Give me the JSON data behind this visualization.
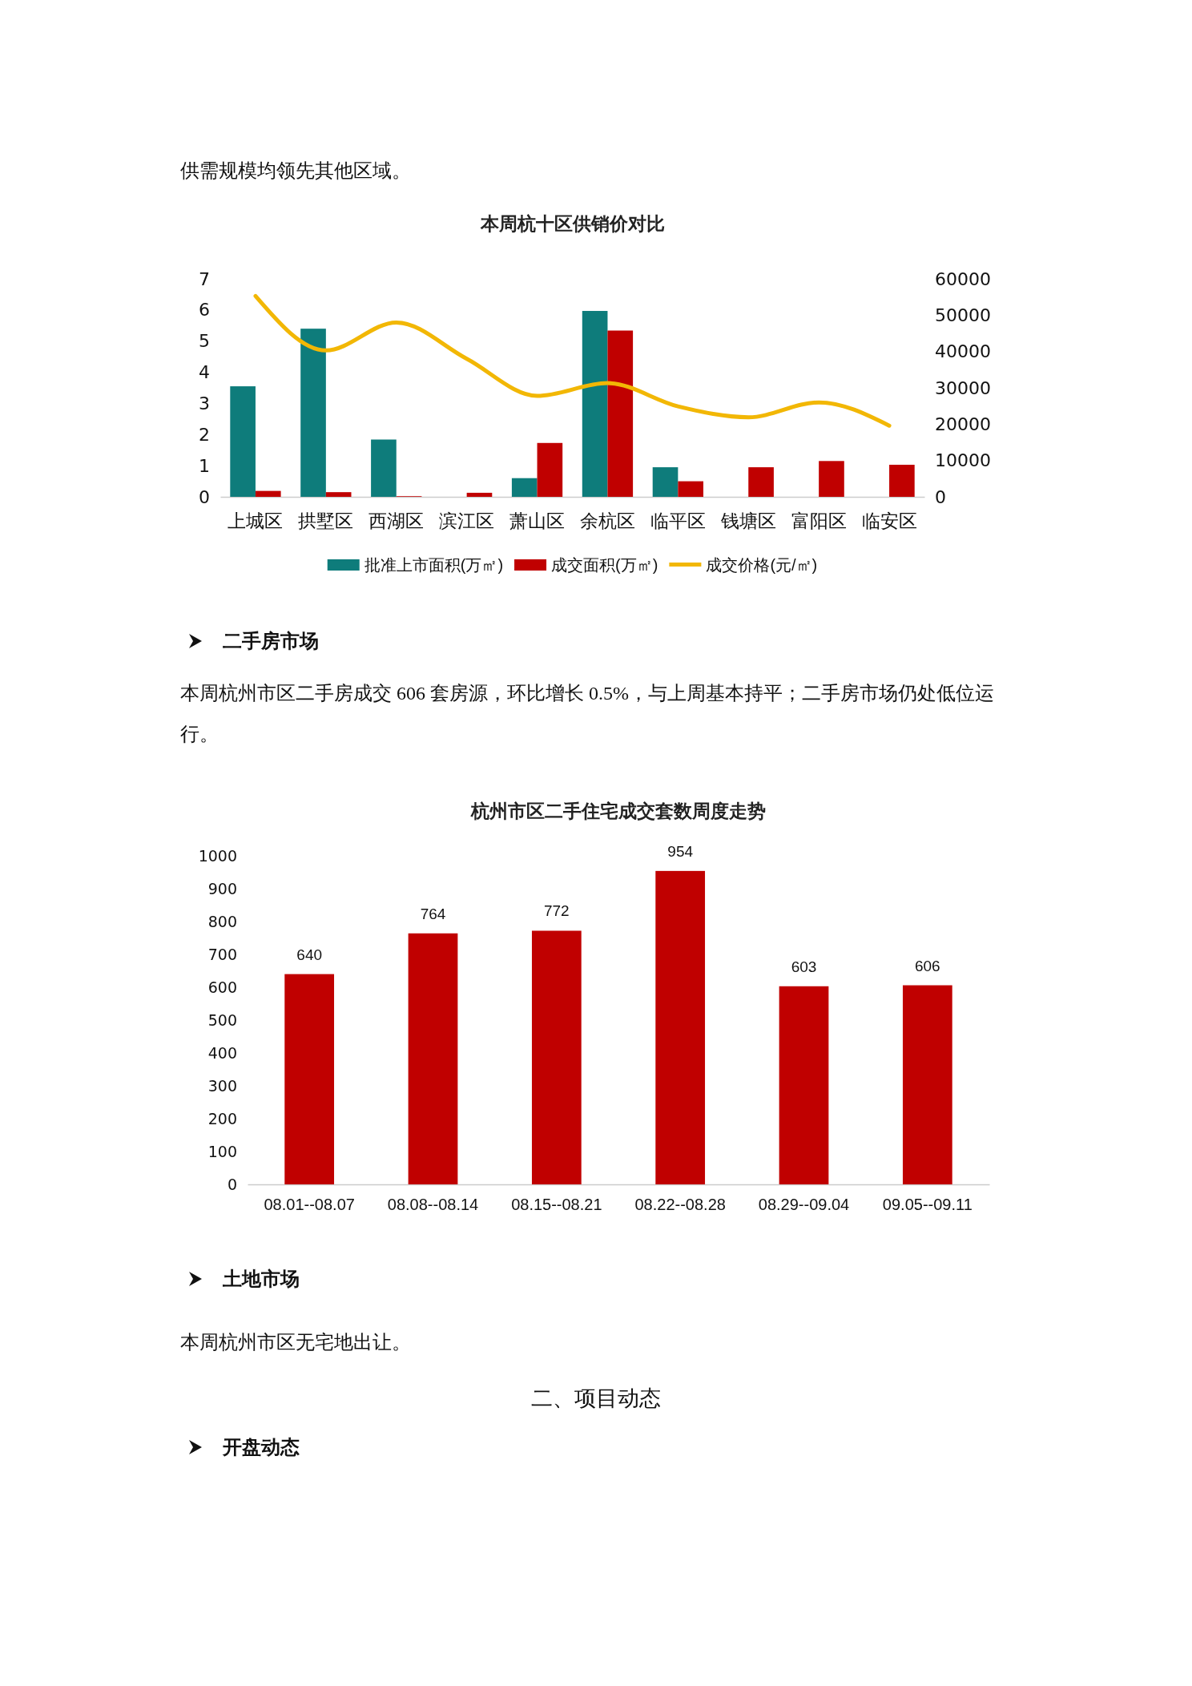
{
  "chart_data": [
    {
      "type": "bar",
      "title": "本周杭十区供销价对比",
      "annotations": [
        "供需规模均领先其他区域。"
      ],
      "categories": [
        "上城区",
        "拱墅区",
        "西湖区",
        "滨江区",
        "萧山区",
        "余杭区",
        "临平区",
        "钱塘区",
        "富阳区",
        "临安区"
      ],
      "series": [
        {
          "name": "批准上市面积(万㎡)",
          "color": "#0e7c7b",
          "values": [
            3.55,
            5.4,
            1.84,
            0,
            0.6,
            5.97,
            0.95,
            0,
            0,
            0
          ]
        },
        {
          "name": "成交面积(万㎡)",
          "color": "#c00000",
          "values": [
            0.19,
            0.15,
            0.02,
            0.13,
            1.73,
            5.34,
            0.5,
            0.95,
            1.15,
            1.03
          ]
        },
        {
          "name": "成交价格(元/㎡)",
          "type": "line",
          "axis": "y2",
          "color": "#f2b705",
          "values": [
            55300,
            40300,
            48000,
            38000,
            27800,
            31300,
            24900,
            21900,
            26000,
            19600
          ]
        }
      ],
      "ylim": [
        0,
        7
      ],
      "yticks": [
        0,
        1,
        2,
        3,
        4,
        5,
        6,
        7
      ],
      "y2lim": [
        0,
        60000
      ],
      "y2ticks": [
        0,
        10000,
        20000,
        30000,
        40000,
        50000,
        60000
      ],
      "legend": "bottom"
    },
    {
      "type": "bar",
      "title": "杭州市区二手住宅成交套数周度走势",
      "annotations": [
        "二手房市场",
        "本周杭州市区二手房成交 606 套房源，环比增长 0.5%，与上周基本持平；二手房市场仍处低位运行。"
      ],
      "categories": [
        "08.01--08.07",
        "08.08--08.14",
        "08.15--08.21",
        "08.22--08.28",
        "08.29--09.04",
        "09.05--09.11"
      ],
      "series": [
        {
          "color": "#c00000",
          "values": [
            640,
            764,
            772,
            954,
            603,
            606
          ]
        }
      ],
      "ylim": [
        0,
        1000
      ],
      "yticks": [
        0,
        100,
        200,
        300,
        400,
        500,
        600,
        700,
        800,
        900,
        1000
      ],
      "data_labels": true
    },
    {
      "type": "other",
      "annotations": [
        "土地市场",
        "本周杭州市区无宅地出让。",
        "二、项目动态",
        "开盘动态"
      ]
    }
  ]
}
